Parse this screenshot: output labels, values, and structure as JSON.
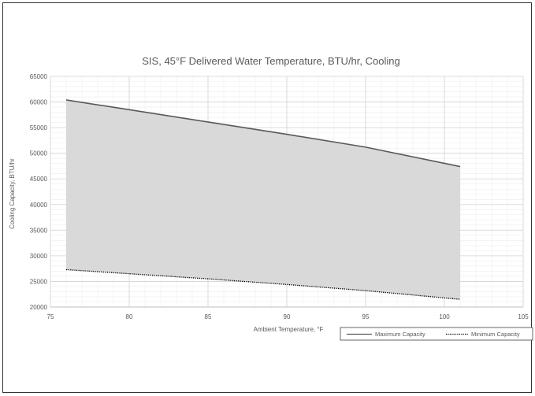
{
  "chart_data": {
    "type": "area",
    "title": "SIS, 45°F Delivered Water Temperature, BTU/hr, Cooling",
    "xlabel": "Ambient Temperature, °F",
    "ylabel": "Cooling Capacity, BTU/hr",
    "xlim": [
      75,
      105
    ],
    "ylim": [
      20000,
      65000
    ],
    "xticks": [
      75,
      80,
      85,
      90,
      95,
      100,
      105
    ],
    "yticks": [
      20000,
      25000,
      30000,
      35000,
      40000,
      45000,
      50000,
      55000,
      60000,
      65000
    ],
    "grid": true,
    "legend_position": "bottom-right",
    "fill_color": "#d9d9d9",
    "series": [
      {
        "name": "Maximum Capacity",
        "style": "solid",
        "color": "#595959",
        "x": [
          76,
          80,
          85,
          90,
          95,
          101
        ],
        "y": [
          60400,
          58500,
          56100,
          53700,
          51200,
          47400
        ]
      },
      {
        "name": "Minimum Capacity",
        "style": "dotted",
        "color": "#000000",
        "x": [
          76,
          80,
          85,
          90,
          95,
          101
        ],
        "y": [
          27300,
          26500,
          25500,
          24400,
          23200,
          21500
        ]
      }
    ]
  }
}
